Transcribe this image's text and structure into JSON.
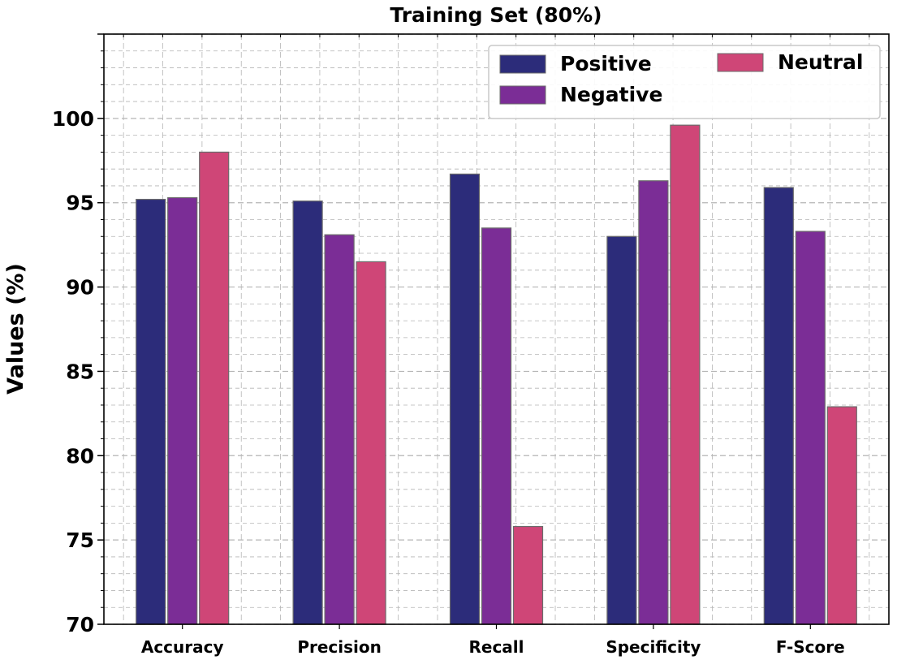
{
  "chart_data": {
    "type": "bar",
    "title": "Training Set (80%)",
    "xlabel": "",
    "ylabel": "Values (%)",
    "ylim": [
      70,
      105
    ],
    "yticks": [
      70,
      75,
      80,
      85,
      90,
      95,
      100
    ],
    "grid": true,
    "legend_position": "top-right",
    "categories": [
      "Accuracy",
      "Precision",
      "Recall",
      "Specificity",
      "F-Score"
    ],
    "series": [
      {
        "name": "Positive",
        "color": "#2c2c7a",
        "values": [
          95.2,
          95.1,
          96.7,
          93.0,
          95.9
        ]
      },
      {
        "name": "Negative",
        "color": "#7b2d96",
        "values": [
          95.3,
          93.1,
          93.5,
          96.3,
          93.3
        ]
      },
      {
        "name": "Neutral",
        "color": "#cf4677",
        "values": [
          98.0,
          91.5,
          75.8,
          99.6,
          82.9
        ]
      }
    ]
  }
}
